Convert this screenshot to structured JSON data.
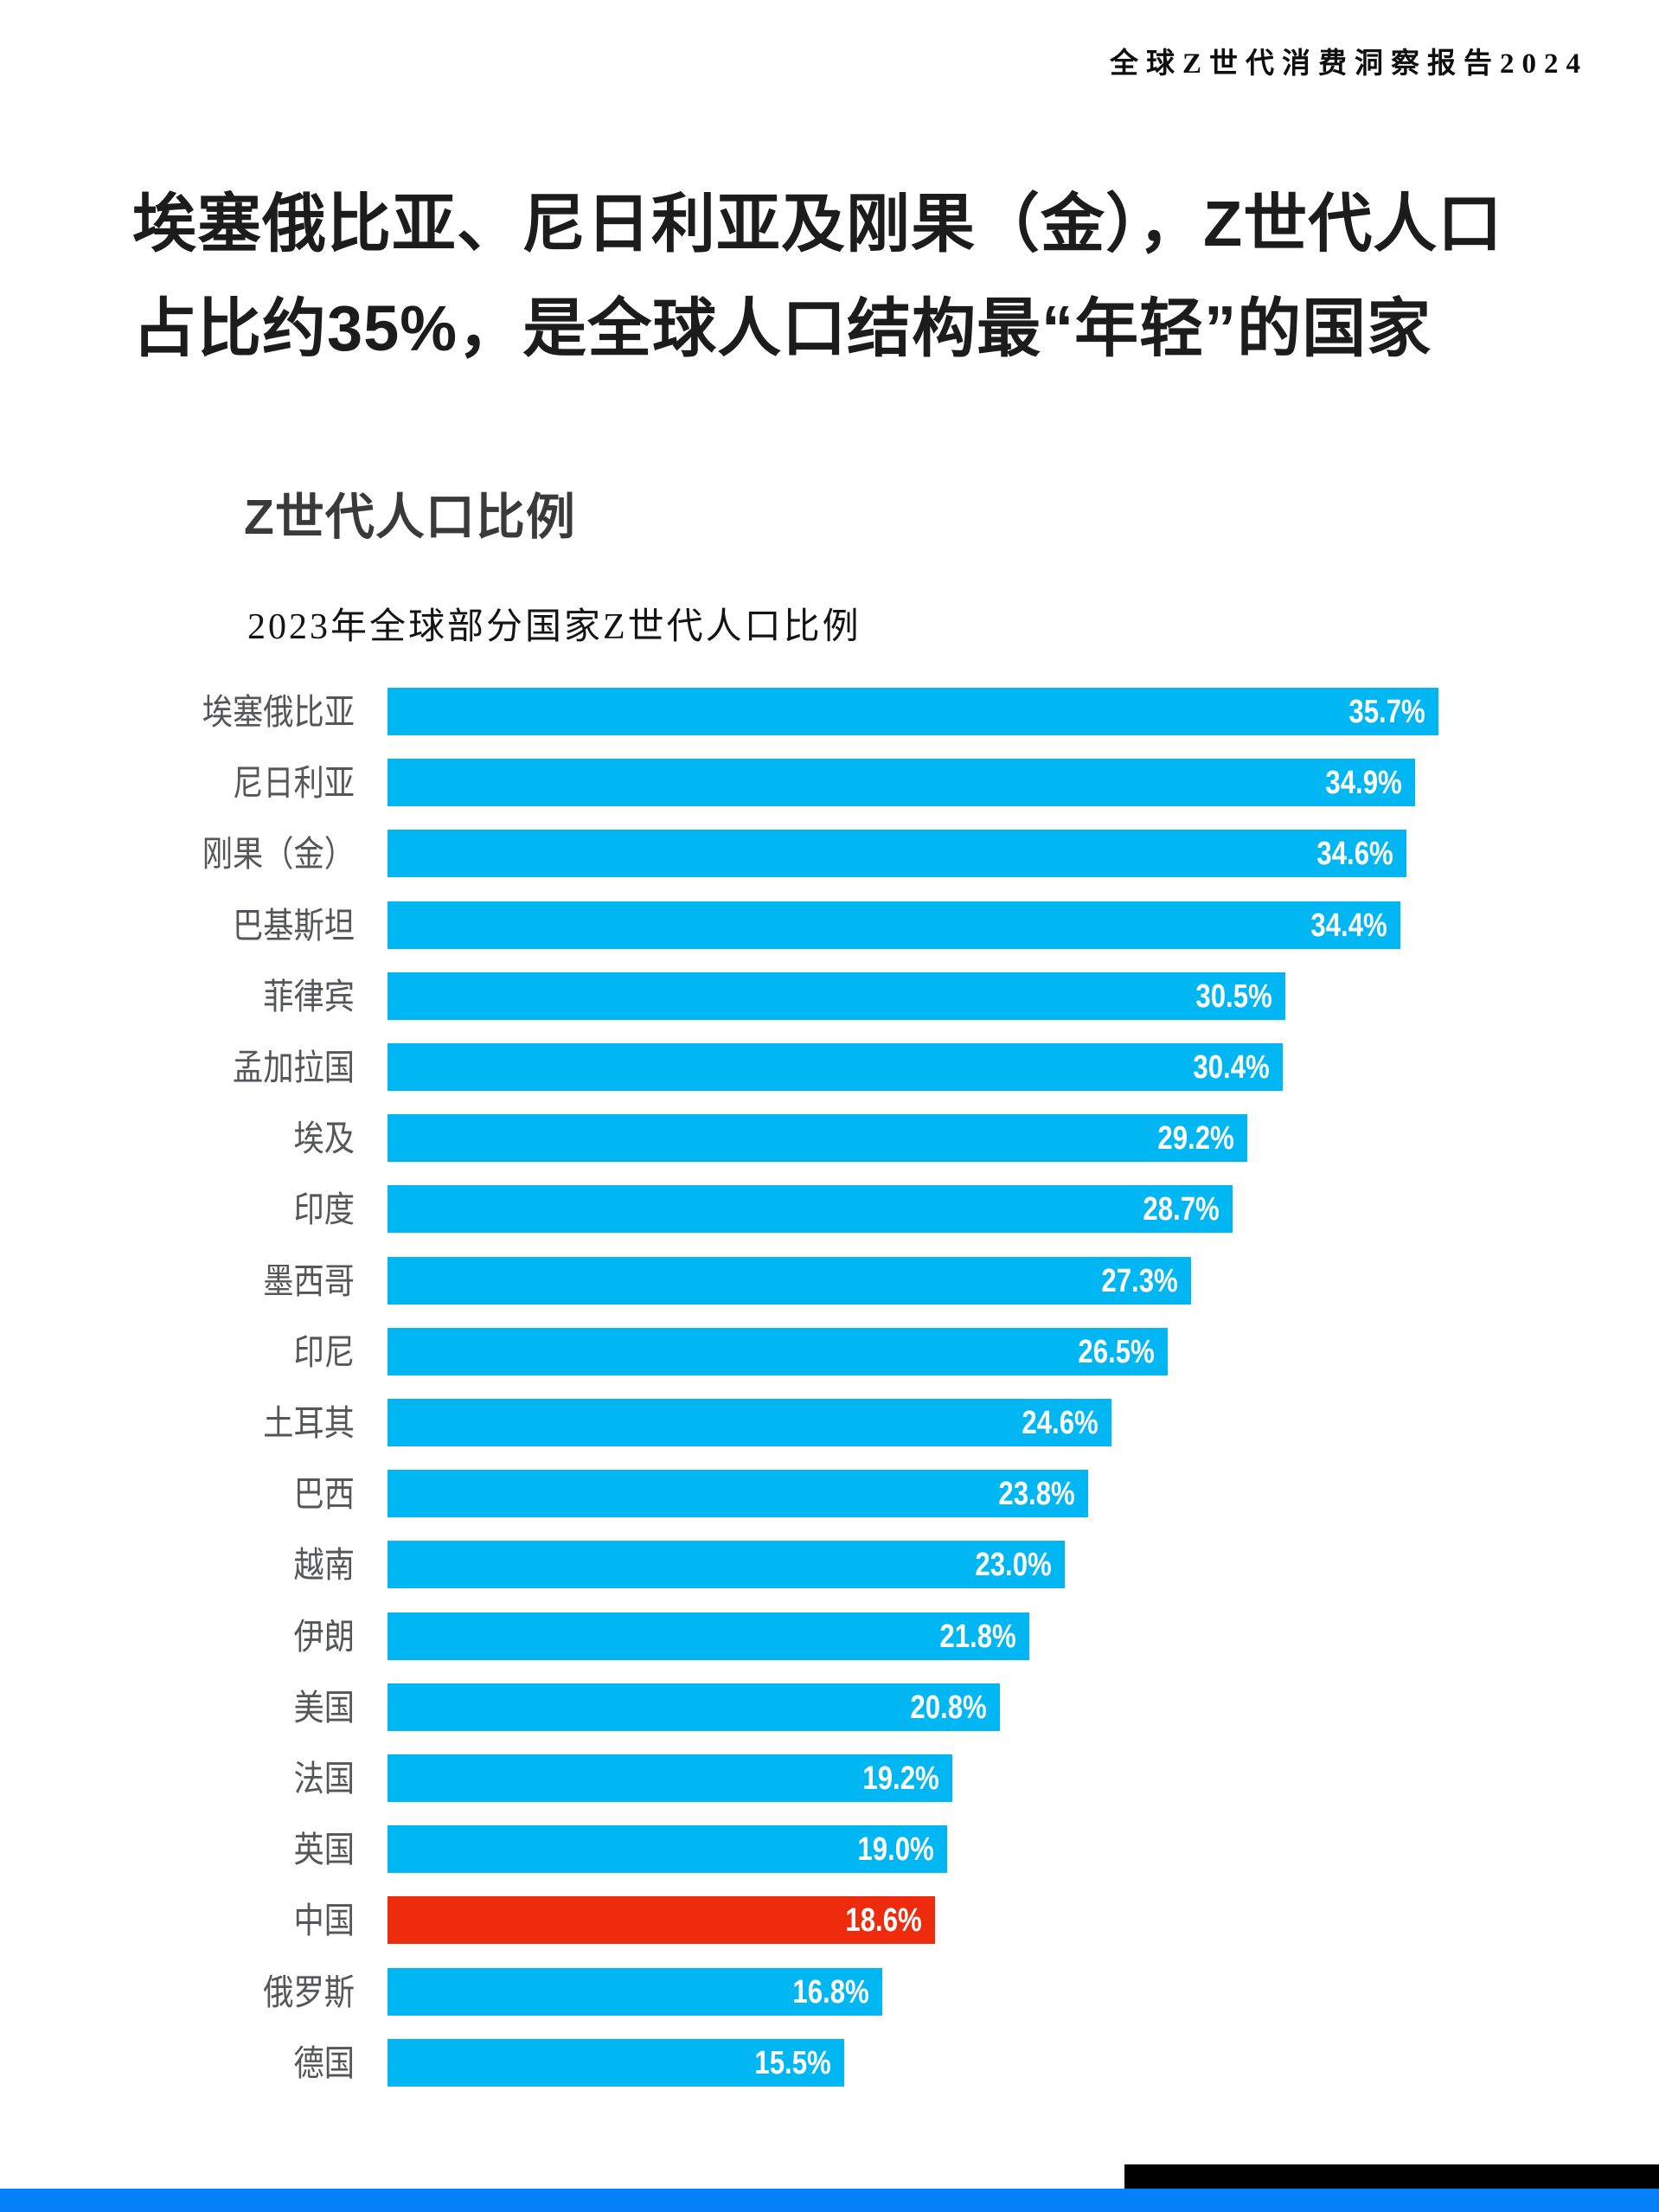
{
  "page": {
    "report_header": "全球Z世代消费洞察报告2024",
    "title_line1": "埃塞俄比亚、尼日利亚及刚果（金），Z世代人口",
    "title_line2": "占比约35%，是全球人口结构最“年轻”的国家"
  },
  "chart_data": {
    "type": "bar",
    "orientation": "horizontal",
    "title": "Z世代人口比例",
    "subtitle": "2023年全球部分国家Z世代人口比例",
    "unit": "%",
    "xlim": [
      0,
      35.7
    ],
    "grid": false,
    "legend": "none",
    "categories": [
      "埃塞俄比亚",
      "尼日利亚",
      "刚果（金）",
      "巴基斯坦",
      "菲律宾",
      "孟加拉国",
      "埃及",
      "印度",
      "墨西哥",
      "印尼",
      "土耳其",
      "巴西",
      "越南",
      "伊朗",
      "美国",
      "法国",
      "英国",
      "中国",
      "俄罗斯",
      "德国"
    ],
    "values": [
      35.7,
      34.9,
      34.6,
      34.4,
      30.5,
      30.4,
      29.2,
      28.7,
      27.3,
      26.5,
      24.6,
      23.8,
      23.0,
      21.8,
      20.8,
      19.2,
      19.0,
      18.6,
      16.8,
      15.5
    ],
    "value_labels": [
      "35.7%",
      "34.9%",
      "34.6%",
      "34.4%",
      "30.5%",
      "30.4%",
      "29.2%",
      "28.7%",
      "27.3%",
      "26.5%",
      "24.6%",
      "23.8%",
      "23.0%",
      "21.8%",
      "20.8%",
      "19.2%",
      "19.0%",
      "18.6%",
      "16.8%",
      "15.5%"
    ],
    "highlight_category": "中国",
    "colors": {
      "bar": "#00B7F3",
      "highlight": "#EE2B0C",
      "value_text": "#FFFFFF",
      "label_text": "#55565A"
    }
  },
  "footer": {
    "accent_bar_color": "#0580F8",
    "black_bar_color": "#000000"
  }
}
